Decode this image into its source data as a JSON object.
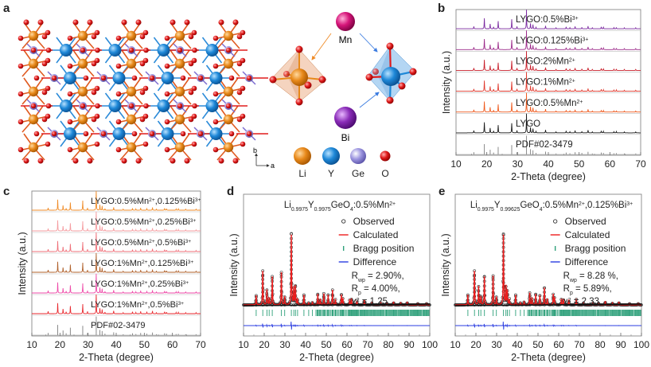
{
  "panels": {
    "a": {
      "label": "a",
      "axis_labels": {
        "b": "b",
        "a": "a"
      },
      "dopants": {
        "mn": "Mn",
        "bi": "Bi"
      },
      "legend": [
        {
          "symbol": "Li",
          "color": "#e8891a"
        },
        {
          "symbol": "Y",
          "color": "#1e88d8"
        },
        {
          "symbol": "Ge",
          "color": "#8f86d8"
        },
        {
          "symbol": "O",
          "color": "#e01b1b"
        }
      ],
      "mn_color": "#d6157a",
      "bi_color": "#8a2cb8"
    },
    "b": {
      "label": "b"
    },
    "c": {
      "label": "c"
    },
    "d": {
      "label": "d"
    },
    "e": {
      "label": "e"
    }
  },
  "chart_data": [
    {
      "id": "b",
      "type": "line",
      "title": "",
      "xlabel": "2-Theta (degree)",
      "ylabel": "Intensity (a.u.)",
      "xlim": [
        10,
        70
      ],
      "xticks": [
        10,
        20,
        30,
        40,
        50,
        60,
        70
      ],
      "peak_positions": [
        15.8,
        19.2,
        21.1,
        22.2,
        23.7,
        28.1,
        29.8,
        32.9,
        34.2,
        35.0,
        36.0,
        39.1,
        42.5,
        45.8,
        47.0,
        48.7,
        50.9,
        52.9,
        54.3,
        57.2,
        57.9,
        61.3,
        62.1,
        64.7,
        68.4
      ],
      "peak_heights": [
        0.12,
        0.55,
        0.25,
        0.1,
        0.4,
        0.5,
        0.12,
        1.0,
        0.28,
        0.22,
        0.08,
        0.15,
        0.05,
        0.1,
        0.06,
        0.12,
        0.08,
        0.14,
        0.05,
        0.1,
        0.08,
        0.06,
        0.07,
        0.05,
        0.05
      ],
      "series": [
        {
          "name": "LYGO:0.5%Bi³⁺",
          "color": "#7b2aa0"
        },
        {
          "name": "LYGO:0.125%Bi³⁺",
          "color": "#9c2a8a"
        },
        {
          "name": "LYGO:2%Mn²⁺",
          "color": "#c81e2a"
        },
        {
          "name": "LYGO:1%Mn²⁺",
          "color": "#e03a2e"
        },
        {
          "name": "LYGO:0.5%Mn²⁺",
          "color": "#ef5a1e"
        },
        {
          "name": "LYGO",
          "color": "#1a1a1a"
        },
        {
          "name": "PDF#02-3479",
          "color": "#8a8a8a",
          "reference": true
        }
      ]
    },
    {
      "id": "c",
      "type": "line",
      "title": "",
      "xlabel": "2-Theta (degree)",
      "ylabel": "Intensity (a.u.)",
      "xlim": [
        10,
        70
      ],
      "xticks": [
        10,
        20,
        30,
        40,
        50,
        60,
        70
      ],
      "series": [
        {
          "name": "LYGO:0.5%Mn²⁺,0.125%Bi³⁺",
          "color": "#f08c28"
        },
        {
          "name": "LYGO:0.5%Mn²⁺,0.25%Bi³⁺",
          "color": "#f59ca0"
        },
        {
          "name": "LYGO:0.5%Mn²⁺,0.5%Bi³⁺",
          "color": "#ef6f78"
        },
        {
          "name": "LYGO:1%Mn²⁺,0.125%Bi³⁺",
          "color": "#b0602a"
        },
        {
          "name": "LYGO:1%Mn²⁺,0.25%Bi³⁺",
          "color": "#ee4aa8"
        },
        {
          "name": "LYGO:1%Mn²⁺,0.5%Bi³⁺",
          "color": "#e8282e"
        },
        {
          "name": "PDF#02-3479",
          "color": "#8a8a8a",
          "reference": true
        }
      ]
    },
    {
      "id": "d",
      "type": "scatter",
      "title": "Li0.9975Y0.9975GeO4:0.5%Mn2+",
      "title_parts": {
        "a": "Li",
        "a_sub": "0.9975",
        "b": "Y",
        "b_sub": "0.9975",
        "c": "GeO",
        "c_sub": "4",
        "d": ":0.5%Mn",
        "d_sup": "2+"
      },
      "xlabel": "2-Theta (degree)",
      "ylabel": "Intensity (a.u.)",
      "xlim": [
        10,
        100
      ],
      "xticks": [
        10,
        20,
        30,
        40,
        50,
        60,
        70,
        80,
        90,
        100
      ],
      "legend": [
        "Observed",
        "Calculated",
        "Bragg position",
        "Difference"
      ],
      "stats": {
        "rwp": "R",
        "rwp_sub": "wp",
        "rwp_val": " = 2.90%,",
        "rp": "R",
        "rp_sub": "p",
        "rp_val": " = 4.00%,",
        "chi": "χ",
        "chi_sup": "2",
        "chi_val": " = 1.25"
      },
      "peak_positions": [
        16.1,
        19.3,
        21.3,
        22.4,
        23.9,
        28.3,
        29.9,
        33.1,
        34.3,
        35.1,
        36.1,
        39.2,
        41.5,
        43.3,
        45.9,
        47.1,
        48.8,
        50.9,
        53.0,
        54.4,
        57.3,
        58.0,
        61.3,
        62.2,
        64.8,
        68.4,
        72.0,
        76.4,
        79.2,
        82.5,
        86.0,
        89.1,
        94.2,
        98.5
      ],
      "peak_heights": [
        0.13,
        0.48,
        0.21,
        0.1,
        0.4,
        0.46,
        0.11,
        1.0,
        0.24,
        0.26,
        0.08,
        0.14,
        0.03,
        0.04,
        0.15,
        0.08,
        0.16,
        0.14,
        0.21,
        0.08,
        0.14,
        0.09,
        0.07,
        0.09,
        0.06,
        0.07,
        0.03,
        0.03,
        0.03,
        0.04,
        0.03,
        0.04,
        0.02,
        0.02
      ],
      "colors": {
        "observed": "#333333",
        "calculated": "#ee1c1c",
        "bragg": "#2ea07a",
        "difference": "#2b3de0"
      }
    },
    {
      "id": "e",
      "type": "scatter",
      "title": "Li0.9975Y0.99625GeO4:0.5%Mn2+,0.125%Bi3+",
      "title_parts": {
        "a": "Li",
        "a_sub": "0.9975",
        "b": "Y",
        "b_sub": "0.99625",
        "c": "GeO",
        "c_sub": "4",
        "d": ":0.5%Mn",
        "d_sup": "2+",
        "e": ",0.125%Bi",
        "e_sup": "3+"
      },
      "xlabel": "2-Theta (degree)",
      "ylabel": "Intensity (a.u.)",
      "xlim": [
        10,
        100
      ],
      "xticks": [
        10,
        20,
        30,
        40,
        50,
        60,
        70,
        80,
        90,
        100
      ],
      "legend": [
        "Observed",
        "Calculated",
        "Bragg position",
        "Difference"
      ],
      "stats": {
        "rwp": "R",
        "rwp_sub": "wp",
        "rwp_val": " = 8.28 %,",
        "rp": "R",
        "rp_sub": "p",
        "rp_val": " = 5.89%,",
        "chi": "χ",
        "chi_sup": "2",
        "chi_val": " = 2.33"
      },
      "peak_positions": [
        16.1,
        19.3,
        21.3,
        22.4,
        24.1,
        28.3,
        29.9,
        33.3,
        34.5,
        35.2,
        36.2,
        39.2,
        41.5,
        43.3,
        46.0,
        47.1,
        48.9,
        50.9,
        53.1,
        54.5,
        57.4,
        58.0,
        61.3,
        62.3,
        64.9,
        68.5,
        72.0,
        76.5,
        79.2,
        82.5,
        86.0,
        89.1,
        94.2,
        98.5
      ],
      "peak_heights": [
        0.14,
        0.48,
        0.26,
        0.12,
        0.4,
        0.41,
        0.11,
        1.0,
        0.26,
        0.2,
        0.08,
        0.14,
        0.03,
        0.05,
        0.17,
        0.1,
        0.15,
        0.13,
        0.24,
        0.08,
        0.15,
        0.1,
        0.08,
        0.08,
        0.07,
        0.08,
        0.03,
        0.03,
        0.03,
        0.05,
        0.03,
        0.04,
        0.02,
        0.02
      ],
      "colors": {
        "observed": "#333333",
        "calculated": "#ee1c1c",
        "bragg": "#2ea07a",
        "difference": "#2b3de0"
      }
    }
  ]
}
